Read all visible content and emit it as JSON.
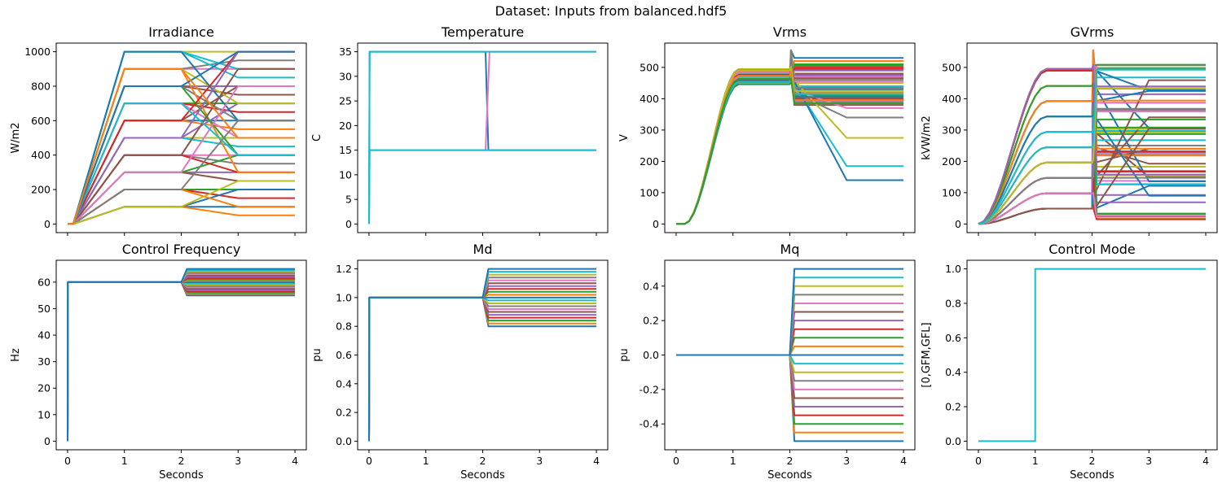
{
  "figure": {
    "suptitle": "Dataset: Inputs from balanced.hdf5",
    "palette": [
      "#1f77b4",
      "#ff7f0e",
      "#2ca02c",
      "#d62728",
      "#9467bd",
      "#8c564b",
      "#e377c2",
      "#7f7f7f",
      "#bcbd22",
      "#17becf"
    ]
  },
  "chart_data": [
    {
      "type": "line",
      "title": "Irradiance",
      "xlabel": "",
      "ylabel": "W/m2",
      "xlim": [
        0,
        4
      ],
      "ylim": [
        0,
        1000
      ],
      "xticks": [
        0,
        1,
        2,
        3,
        4
      ],
      "xtick_labels_visible": false,
      "yticks": [
        0,
        200,
        400,
        600,
        800,
        1000
      ],
      "series_pattern": "ramp 0→level over 0.1–1 s, hold level to 2 s, then ramp to new level by 3 s and hold to 4 s",
      "level_pairs": [
        [
          100,
          100
        ],
        [
          100,
          50
        ],
        [
          200,
          200
        ],
        [
          200,
          150
        ],
        [
          300,
          300
        ],
        [
          300,
          250
        ],
        [
          400,
          400
        ],
        [
          400,
          350
        ],
        [
          500,
          500
        ],
        [
          500,
          450
        ],
        [
          600,
          600
        ],
        [
          600,
          550
        ],
        [
          700,
          700
        ],
        [
          700,
          650
        ],
        [
          800,
          800
        ],
        [
          800,
          750
        ],
        [
          900,
          900
        ],
        [
          900,
          950
        ],
        [
          1000,
          1000
        ],
        [
          1000,
          850
        ],
        [
          100,
          200
        ],
        [
          200,
          100
        ],
        [
          300,
          400
        ],
        [
          400,
          300
        ],
        [
          500,
          700
        ],
        [
          600,
          800
        ],
        [
          700,
          500
        ],
        [
          800,
          600
        ],
        [
          900,
          700
        ],
        [
          1000,
          900
        ],
        [
          1000,
          600
        ],
        [
          900,
          300
        ],
        [
          800,
          400
        ],
        [
          600,
          1000
        ],
        [
          500,
          1000
        ],
        [
          400,
          900
        ],
        [
          300,
          800
        ],
        [
          200,
          600
        ],
        [
          100,
          250
        ],
        [
          700,
          400
        ],
        [
          800,
          1000
        ],
        [
          900,
          500
        ]
      ],
      "colors_visible": true
    },
    {
      "type": "line",
      "title": "Temperature",
      "xlabel": "",
      "ylabel": "C",
      "xlim": [
        0,
        4
      ],
      "ylim": [
        0,
        35
      ],
      "xticks": [
        0,
        1,
        2,
        3,
        4
      ],
      "xtick_labels_visible": false,
      "yticks": [
        0,
        5,
        10,
        15,
        20,
        25,
        30,
        35
      ],
      "series": [
        {
          "points": [
            [
              0,
              0
            ],
            [
              0.01,
              35
            ],
            [
              2.05,
              35
            ],
            [
              2.1,
              15
            ],
            [
              4,
              15
            ]
          ],
          "color": "#1f77b4"
        },
        {
          "points": [
            [
              0,
              0
            ],
            [
              0.01,
              15
            ],
            [
              2.05,
              15
            ],
            [
              2.12,
              35
            ],
            [
              4,
              35
            ]
          ],
          "color": "#e377c2"
        },
        {
          "points": [
            [
              0,
              0
            ],
            [
              0.01,
              35
            ],
            [
              4,
              35
            ]
          ],
          "color": "#17becf"
        },
        {
          "points": [
            [
              0,
              0
            ],
            [
              0.01,
              15
            ],
            [
              4,
              15
            ]
          ],
          "color": "#17becf"
        }
      ]
    },
    {
      "type": "line",
      "title": "Vrms",
      "xlabel": "",
      "ylabel": "V",
      "xlim": [
        0,
        4
      ],
      "ylim": [
        0,
        550
      ],
      "xticks": [
        0,
        1,
        2,
        3,
        4
      ],
      "xtick_labels_visible": false,
      "yticks": [
        0,
        100,
        200,
        300,
        400,
        500
      ],
      "series_pattern": "hold 0 to 0.15 s, rise to plateau (~445–495 V) by ~1 s, hold to 2 s, spike then move to final level (ramp over 2–3 s for some)",
      "final_levels": [
        530,
        520,
        510,
        500,
        490,
        480,
        470,
        460,
        450,
        440,
        430,
        420,
        410,
        400,
        390,
        380,
        370,
        340,
        275,
        185,
        140,
        520,
        505,
        495,
        475,
        465,
        455,
        435,
        425,
        415,
        405,
        395,
        385
      ]
    },
    {
      "type": "line",
      "title": "GVrms",
      "xlabel": "",
      "ylabel": "kVW/m2",
      "xlim": [
        0,
        4
      ],
      "ylim": [
        0,
        550
      ],
      "xticks": [
        0,
        1,
        2,
        3,
        4
      ],
      "xtick_labels_visible": false,
      "yticks": [
        0,
        100,
        200,
        300,
        400,
        500
      ],
      "series_pattern": "rise from 0 to plateau (~49–495) by ~1.2 s, hold to 2 s, spike then scatter to new levels (~15–520)",
      "plateau_levels": [
        49,
        98,
        147,
        196,
        245,
        294,
        343,
        392,
        441,
        490,
        495
      ],
      "final_range": [
        15,
        520
      ]
    },
    {
      "type": "line",
      "title": "Control Frequency",
      "xlabel": "Seconds",
      "ylabel": "Hz",
      "xlim": [
        0,
        4
      ],
      "ylim": [
        0,
        65
      ],
      "xticks": [
        0,
        1,
        2,
        3,
        4
      ],
      "yticks": [
        0,
        10,
        20,
        30,
        40,
        50,
        60
      ],
      "series_pattern": "step 0→60 Hz at t=0, hold to 2 s, then step to level in 55–65 Hz",
      "final_levels": [
        55,
        55.5,
        56,
        56.5,
        57,
        57.5,
        58,
        58.5,
        59,
        59.5,
        60,
        60.5,
        61,
        61.5,
        62,
        62.5,
        63,
        63.5,
        64,
        64.5,
        65
      ]
    },
    {
      "type": "line",
      "title": "Md",
      "xlabel": "Seconds",
      "ylabel": "pu",
      "xlim": [
        0,
        4
      ],
      "ylim": [
        0,
        1.2
      ],
      "xticks": [
        0,
        1,
        2,
        3,
        4
      ],
      "yticks": [
        0.0,
        0.2,
        0.4,
        0.6,
        0.8,
        1.0,
        1.2
      ],
      "series_pattern": "step 0→1.0 pu at t=0, hold to 2 s, then move to level 0.8–1.2 pu by ~2.1 s",
      "final_levels": [
        0.8,
        0.82,
        0.84,
        0.86,
        0.88,
        0.9,
        0.92,
        0.94,
        0.96,
        0.98,
        1.0,
        1.02,
        1.04,
        1.06,
        1.08,
        1.1,
        1.12,
        1.14,
        1.16,
        1.18,
        1.2
      ]
    },
    {
      "type": "line",
      "title": "Mq",
      "xlabel": "Seconds",
      "ylabel": "pu",
      "xlim": [
        0,
        4
      ],
      "ylim": [
        -0.5,
        0.5
      ],
      "xticks": [
        0,
        1,
        2,
        3,
        4
      ],
      "yticks": [
        -0.4,
        -0.2,
        0.0,
        0.2,
        0.4
      ],
      "series_pattern": "hold 0 pu to 2 s, then move to level −0.5–0.5 pu by ~2.1 s",
      "final_levels": [
        -0.5,
        -0.45,
        -0.4,
        -0.35,
        -0.3,
        -0.25,
        -0.2,
        -0.15,
        -0.1,
        -0.05,
        0.0,
        0.05,
        0.1,
        0.15,
        0.2,
        0.25,
        0.3,
        0.35,
        0.4,
        0.45,
        0.5
      ]
    },
    {
      "type": "line",
      "title": "Control Mode",
      "xlabel": "Seconds",
      "ylabel": "[0,GFM,GFL]",
      "xlim": [
        0,
        4
      ],
      "ylim": [
        0,
        1
      ],
      "xticks": [
        0,
        1,
        2,
        3,
        4
      ],
      "yticks": [
        0.0,
        0.2,
        0.4,
        0.6,
        0.8,
        1.0
      ],
      "series": [
        {
          "points": [
            [
              0,
              0
            ],
            [
              1,
              0
            ],
            [
              1,
              1
            ],
            [
              4,
              1
            ]
          ],
          "color": "#17becf"
        }
      ]
    }
  ]
}
